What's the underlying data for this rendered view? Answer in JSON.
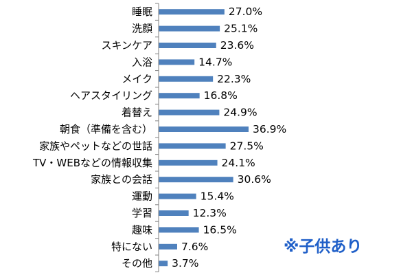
{
  "chart_data": {
    "type": "bar",
    "orientation": "horizontal",
    "categories": [
      "睡眠",
      "洗顔",
      "スキンケア",
      "入浴",
      "メイク",
      "ヘアスタイリング",
      "着替え",
      "朝食（準備を含む）",
      "家族やペットなどの世話",
      "TV・WEBなどの情報収集",
      "家族との会話",
      "運動",
      "学習",
      "趣味",
      "特にない",
      "その他"
    ],
    "values": [
      27.0,
      25.1,
      23.6,
      14.7,
      22.3,
      16.8,
      24.9,
      36.9,
      27.5,
      24.1,
      30.6,
      15.4,
      12.3,
      16.5,
      7.6,
      3.7
    ],
    "value_labels": [
      "27.0%",
      "25.1%",
      "23.6%",
      "14.7%",
      "22.3%",
      "16.8%",
      "24.9%",
      "36.9%",
      "27.5%",
      "24.1%",
      "30.6%",
      "15.4%",
      "12.3%",
      "16.5%",
      "7.6%",
      "3.7%"
    ],
    "title": "",
    "xlabel": "",
    "ylabel": "",
    "xlim": [
      0,
      40
    ],
    "grid": false,
    "bar_color": "#4f81bd",
    "axis_color": "#808080"
  },
  "annotation": {
    "text": "※子供あり",
    "color": "#1f5fc8"
  }
}
